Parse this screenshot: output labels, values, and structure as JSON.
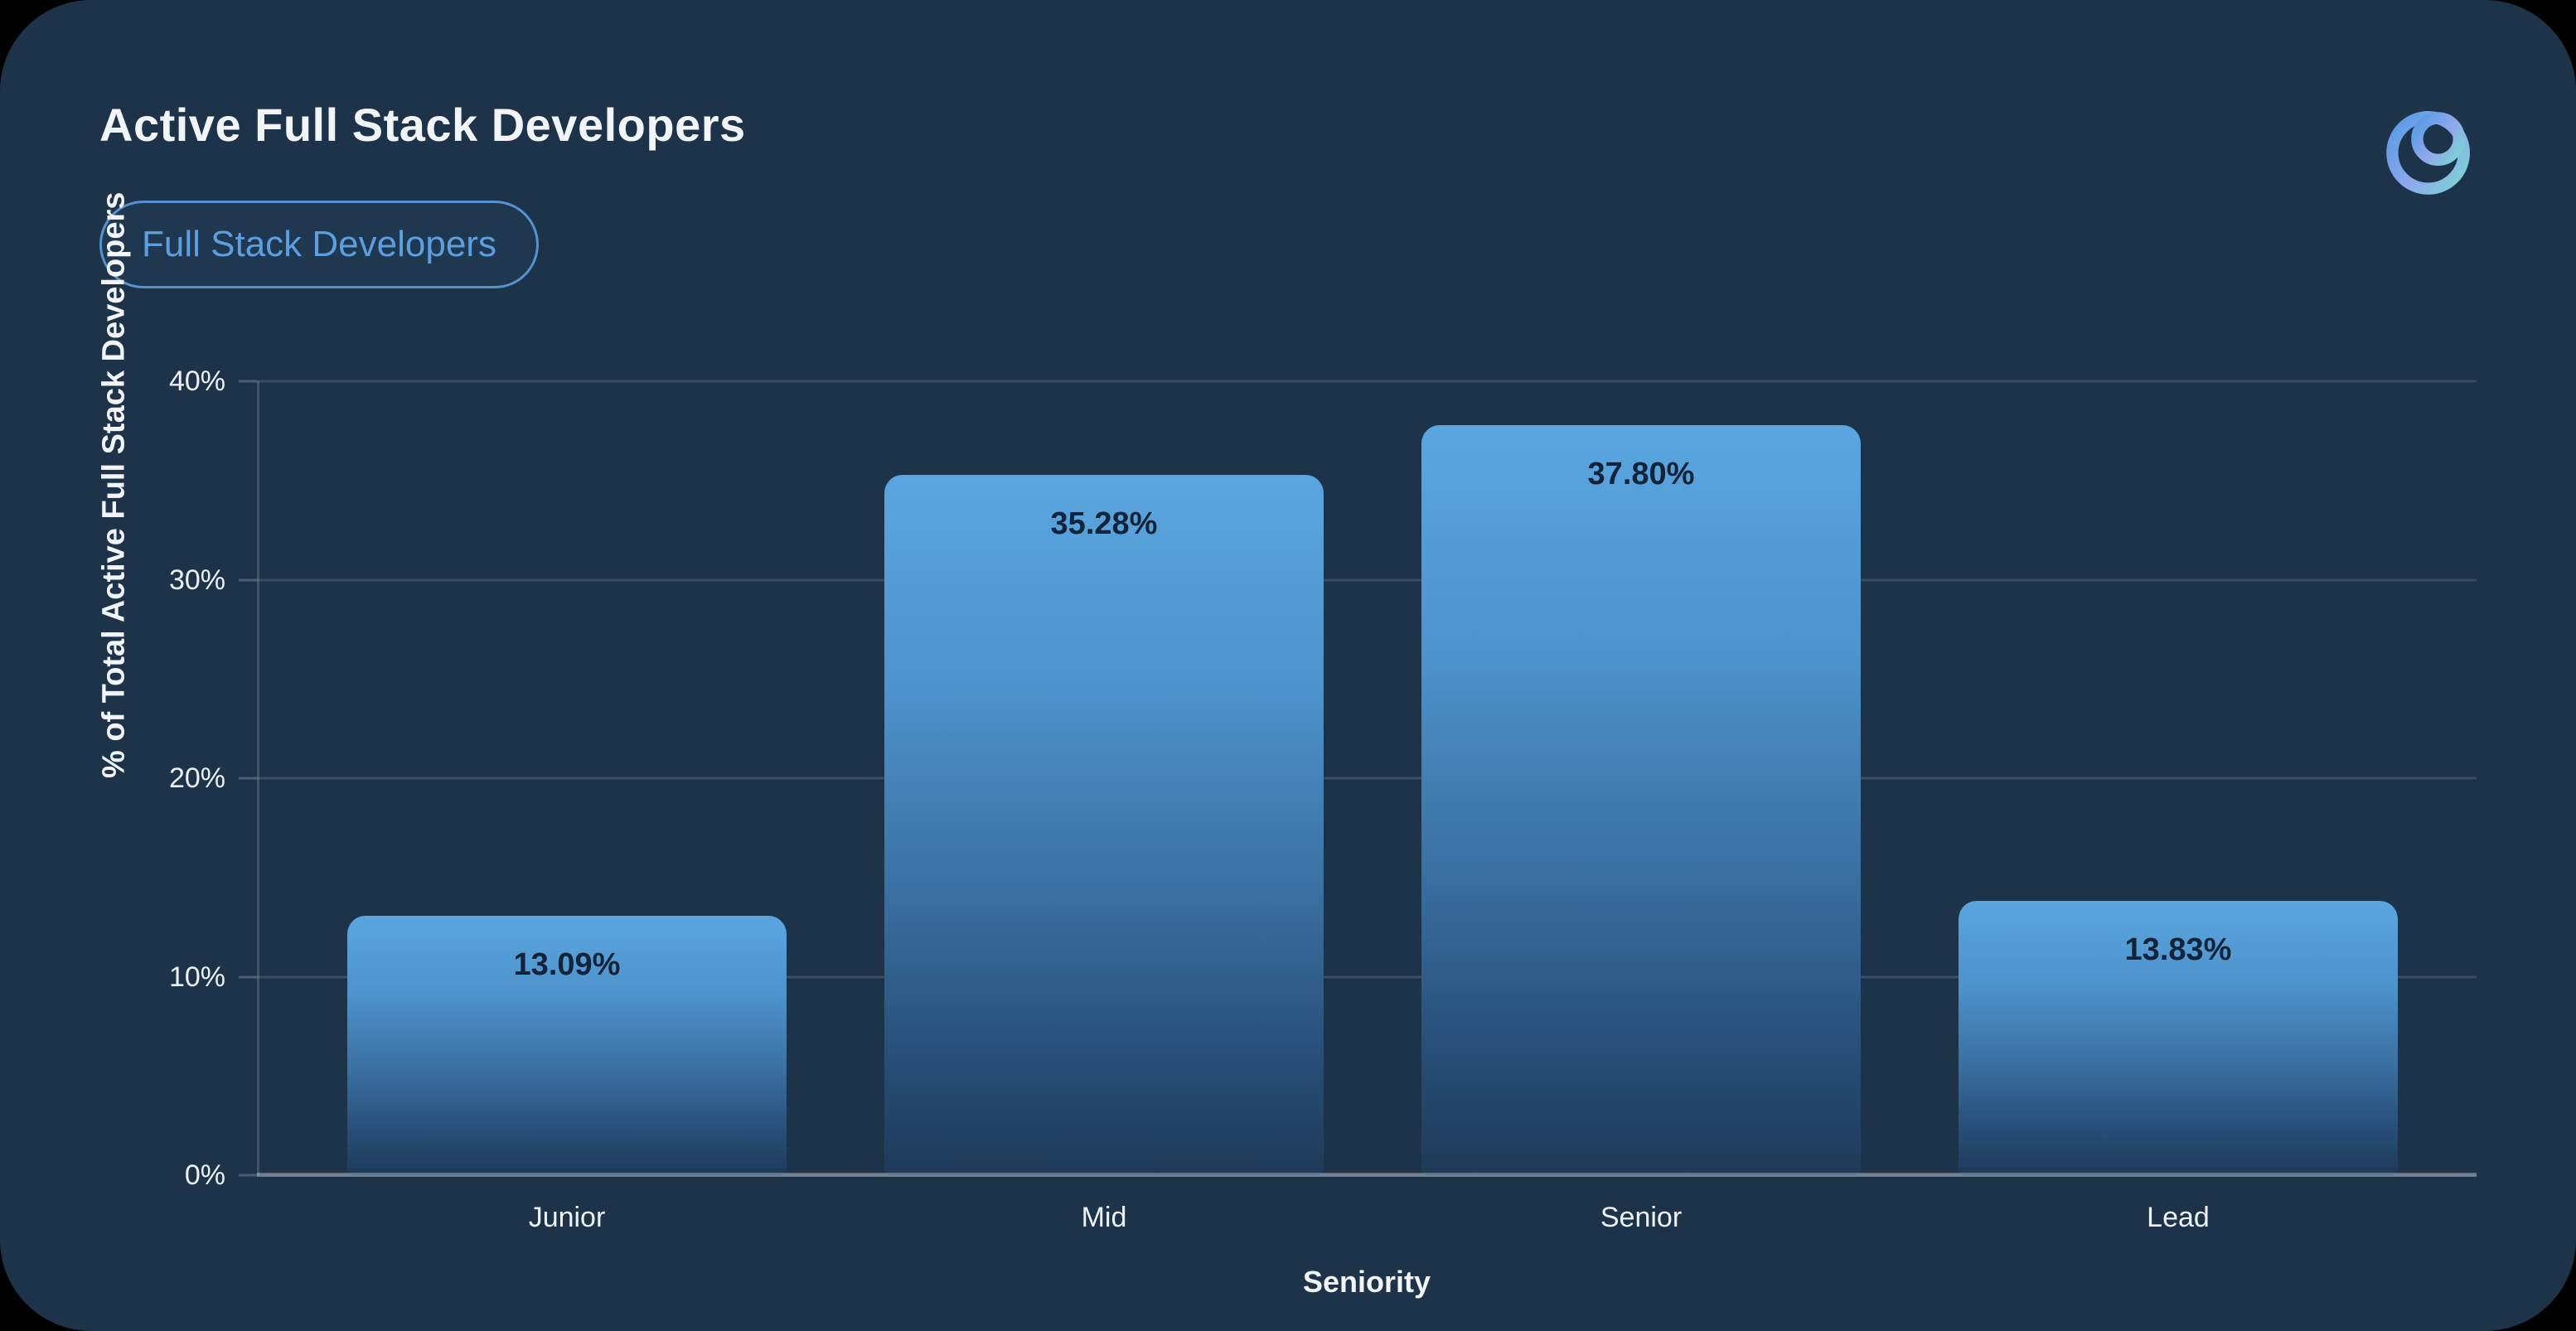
{
  "header": {
    "title": "Active Full Stack Developers",
    "badge": "Full Stack Developers",
    "logo": "ring-logo"
  },
  "colors": {
    "page_bg": "#000000",
    "card_bg": "#1d3349",
    "accent_blue": "#5c9fe0",
    "bar_top": "#5aa6e1",
    "bar_bottom": "#1e3a57",
    "bar_label": "#132338",
    "text_light": "#f2f5f8",
    "gridline": "rgba(255,255,255,0.13)",
    "axis_line": "rgba(255,255,255,0.30)",
    "logo_gradient": [
      "#5d9ce6",
      "#8fa9ec",
      "#79d3d4"
    ]
  },
  "chart_data": {
    "type": "bar",
    "title": "Active Full Stack Developers",
    "categories": [
      "Junior",
      "Mid",
      "Senior",
      "Lead"
    ],
    "values": [
      13.09,
      35.28,
      37.8,
      13.83
    ],
    "bar_labels": [
      "13.09%",
      "35.28%",
      "37.80%",
      "13.83%"
    ],
    "xlabel": "Seniority",
    "ylabel": "% of Total Active Full Stack Developers",
    "ylim": [
      0,
      40
    ],
    "ytick_values": [
      0,
      10,
      20,
      30,
      40
    ],
    "ytick_labels": [
      "0%",
      "10%",
      "20%",
      "30%",
      "40%"
    ],
    "grid": true,
    "legend": false,
    "bar_gradient": true
  }
}
